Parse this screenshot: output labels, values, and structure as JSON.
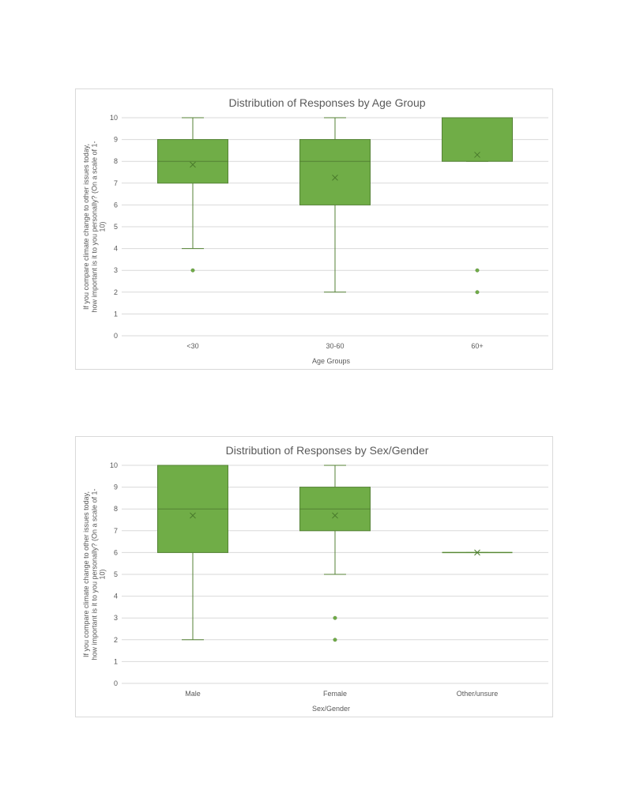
{
  "chart_data": [
    {
      "type": "box",
      "title": "Distribution of Responses by Age Group",
      "xlabel": "Age Groups",
      "ylabel_lines": [
        "If you compare climate change to other issues today,",
        "how important is it to you personally? (On a scale of 1-",
        "10)"
      ],
      "ylim": [
        0,
        10
      ],
      "yticks": [
        0,
        1,
        2,
        3,
        4,
        5,
        6,
        7,
        8,
        9,
        10
      ],
      "grid": true,
      "color": "#70ad47",
      "edge_color": "#548235",
      "categories": [
        "<30",
        "30-60",
        "60+"
      ],
      "boxes": [
        {
          "category": "<30",
          "min": 4,
          "q1": 7,
          "median": 8,
          "q3": 9,
          "max": 10,
          "mean": 7.85,
          "outliers": [
            3
          ]
        },
        {
          "category": "30-60",
          "min": 2,
          "q1": 6,
          "median": 8,
          "q3": 9,
          "max": 10,
          "mean": 7.25,
          "outliers": []
        },
        {
          "category": "60+",
          "min": 8,
          "q1": 8,
          "median": 10,
          "q3": 10,
          "max": 10,
          "mean": 8.3,
          "outliers": [
            3,
            2
          ]
        }
      ]
    },
    {
      "type": "box",
      "title": "Distribution of Responses by Sex/Gender",
      "xlabel": "Sex/Gender",
      "ylabel_lines": [
        "If you compare climate change to other issues today,",
        "how important is it to you personally? (On a scale of 1-",
        "10)"
      ],
      "ylim": [
        0,
        10
      ],
      "yticks": [
        0,
        1,
        2,
        3,
        4,
        5,
        6,
        7,
        8,
        9,
        10
      ],
      "grid": true,
      "color": "#70ad47",
      "edge_color": "#548235",
      "categories": [
        "Male",
        "Female",
        "Other/unsure"
      ],
      "boxes": [
        {
          "category": "Male",
          "min": 2,
          "q1": 6,
          "median": 8,
          "q3": 10,
          "max": 10,
          "mean": 7.7,
          "outliers": []
        },
        {
          "category": "Female",
          "min": 5,
          "q1": 7,
          "median": 8,
          "q3": 9,
          "max": 10,
          "mean": 7.7,
          "outliers": [
            3,
            2
          ]
        },
        {
          "category": "Other/unsure",
          "min": 6,
          "q1": 6,
          "median": 6,
          "q3": 6,
          "max": 6,
          "mean": 6,
          "outliers": []
        }
      ]
    }
  ]
}
